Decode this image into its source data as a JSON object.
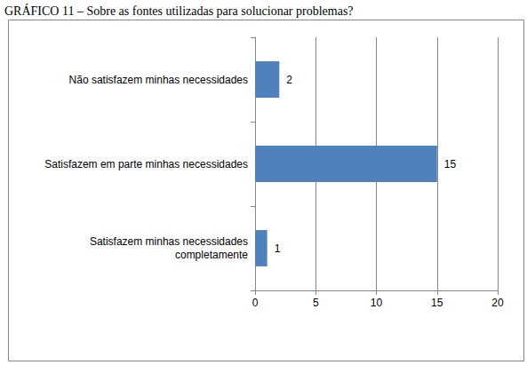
{
  "chart_data": {
    "type": "bar",
    "orientation": "horizontal",
    "title": "GRÁFICO 11 – Sobre as fontes utilizadas para solucionar problemas?",
    "categories": [
      "Não satisfazem minhas necessidades",
      "Satisfazem em parte minhas necessidades",
      "Satisfazem minhas necessidades completamente"
    ],
    "values": [
      2,
      15,
      1
    ],
    "color": "#4f81bd",
    "xlim": [
      0,
      20
    ],
    "xticks": [
      0,
      5,
      10,
      15,
      20
    ],
    "grid": true,
    "data_labels": true
  }
}
